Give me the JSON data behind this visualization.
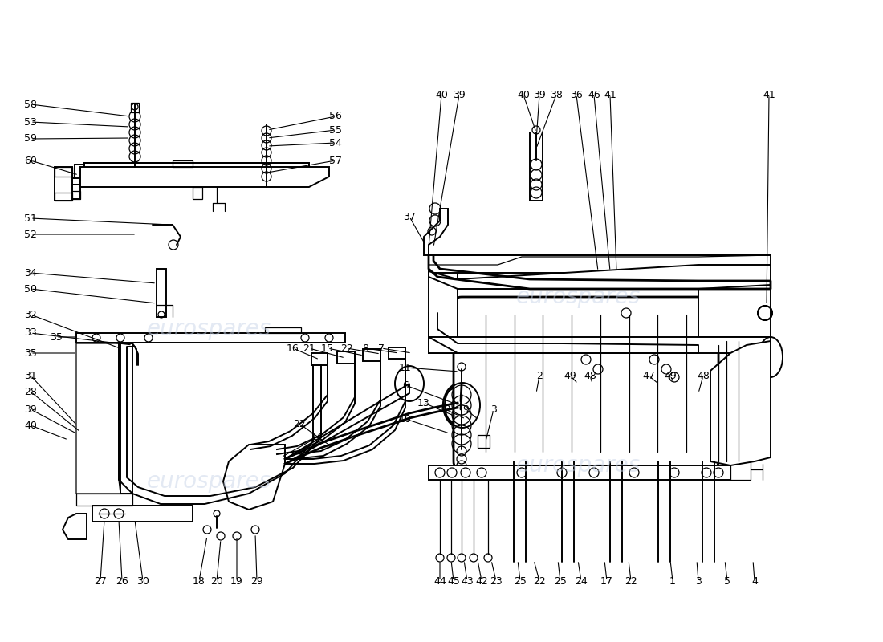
{
  "background_color": "#ffffff",
  "watermark_text": "eurospares",
  "watermark_color": "#c8d4e8",
  "line_color": "#000000",
  "figsize": [
    11.0,
    8.0
  ],
  "dpi": 100,
  "label_fontsize": 9.0
}
